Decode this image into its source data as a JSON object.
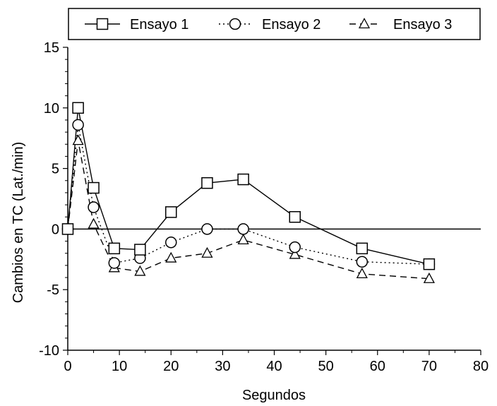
{
  "chart_data": {
    "type": "line",
    "title": "",
    "xlabel": "Segundos",
    "ylabel": "Cambios en TC (Lat./min)",
    "xlim": [
      0,
      80
    ],
    "ylim": [
      -10,
      15
    ],
    "x_ticks": [
      "0",
      "10",
      "20",
      "30",
      "40",
      "50",
      "60",
      "70",
      "80"
    ],
    "y_ticks": [
      "-10",
      "-5",
      "0",
      "5",
      "10",
      "15"
    ],
    "grid": false,
    "zero_line": true,
    "legend_position": "top",
    "series": [
      {
        "name": "Ensayo 1",
        "marker": "square",
        "line_style": "solid",
        "x": [
          0,
          2,
          5,
          9,
          14,
          20,
          27,
          34,
          44,
          57,
          70
        ],
        "y": [
          0,
          10,
          3.4,
          -1.6,
          -1.7,
          1.4,
          3.8,
          4.1,
          1.0,
          -1.6,
          -2.9
        ]
      },
      {
        "name": "Ensayo 2",
        "marker": "circle",
        "line_style": "dotted",
        "x": [
          0,
          2,
          5,
          9,
          14,
          20,
          27,
          34,
          44,
          57,
          70
        ],
        "y": [
          0,
          8.6,
          1.8,
          -2.8,
          -2.4,
          -1.1,
          0,
          0,
          -1.5,
          -2.7,
          -2.9
        ]
      },
      {
        "name": "Ensayo 3",
        "marker": "triangle",
        "line_style": "dashed",
        "x": [
          0,
          2,
          5,
          9,
          14,
          20,
          27,
          34,
          44,
          57,
          70
        ],
        "y": [
          0,
          7.3,
          0.4,
          -3.2,
          -3.5,
          -2.4,
          -2.0,
          -0.9,
          -2.1,
          -3.7,
          -4.1
        ]
      }
    ]
  }
}
